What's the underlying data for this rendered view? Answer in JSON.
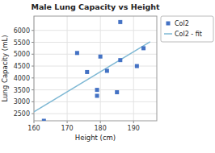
{
  "chart_data": {
    "type": "scatter",
    "title": "Male Lung Capacity vs Height",
    "xlabel": "Height (cm)",
    "ylabel": "Lung Capacity (mL)",
    "series": [
      {
        "name": "Col2",
        "type": "scatter",
        "marker": "square",
        "color": "#4472C4",
        "x": [
          163,
          173,
          176,
          179,
          179,
          180,
          182,
          185,
          186,
          186,
          191,
          193
        ],
        "values": [
          2200,
          5050,
          4250,
          3500,
          3250,
          4900,
          4300,
          3400,
          4750,
          6350,
          4500,
          5250
        ]
      },
      {
        "name": "Col2 - fit",
        "type": "line",
        "line_style": "solid",
        "color": "#7eb8d4",
        "x": [
          160,
          195
        ],
        "values": [
          2580,
          5520
        ]
      }
    ],
    "xlim": [
      160,
      197
    ],
    "ylim": [
      2200,
      6600
    ],
    "xticks": [
      160,
      170,
      180,
      190
    ],
    "yticks": [
      2500,
      3000,
      3500,
      4000,
      4500,
      5000,
      5500,
      6000
    ],
    "grid": true,
    "legend": "right"
  }
}
